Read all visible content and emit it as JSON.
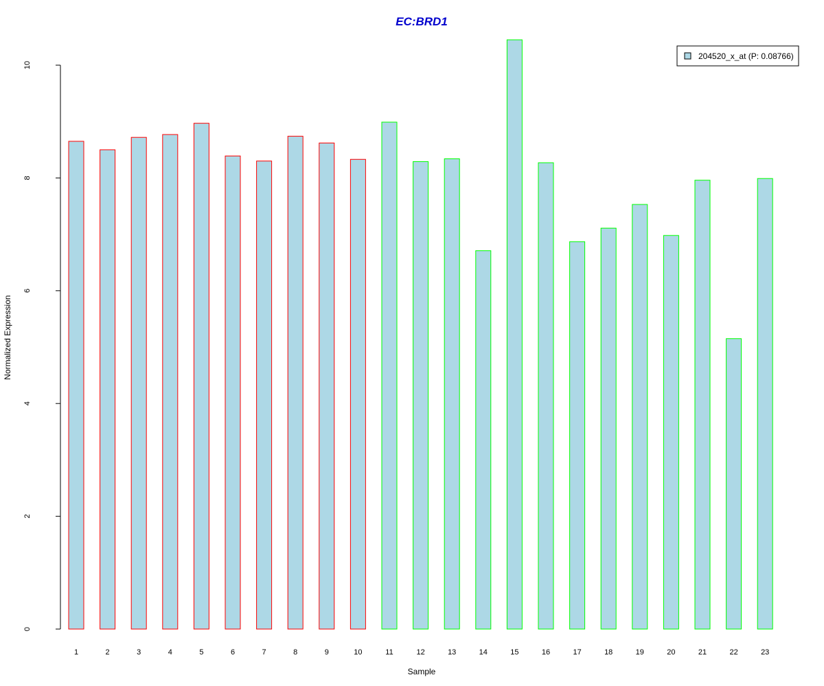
{
  "chart_data": {
    "type": "bar",
    "title": "EC:BRD1",
    "xlabel": "Sample",
    "ylabel": "Normalized Expression",
    "ylim": [
      0,
      10.45
    ],
    "yticks": [
      0,
      2,
      4,
      6,
      8,
      10
    ],
    "categories": [
      "1",
      "2",
      "3",
      "4",
      "5",
      "6",
      "7",
      "8",
      "9",
      "10",
      "11",
      "12",
      "13",
      "14",
      "15",
      "16",
      "17",
      "18",
      "19",
      "20",
      "21",
      "22",
      "23"
    ],
    "series": [
      {
        "name": "204520_x_at (P: 0.08766)",
        "values": [
          8.65,
          8.5,
          8.72,
          8.77,
          8.97,
          8.39,
          8.3,
          8.74,
          8.62,
          8.33,
          8.99,
          8.29,
          8.34,
          6.71,
          10.45,
          8.27,
          6.87,
          7.11,
          7.53,
          6.98,
          7.96,
          5.15,
          7.99
        ],
        "fill_color": "#add8e6",
        "border_colors": [
          "#ff0000",
          "#ff0000",
          "#ff0000",
          "#ff0000",
          "#ff0000",
          "#ff0000",
          "#ff0000",
          "#ff0000",
          "#ff0000",
          "#ff0000",
          "#00ff00",
          "#00ff00",
          "#00ff00",
          "#00ff00",
          "#00ff00",
          "#00ff00",
          "#00ff00",
          "#00ff00",
          "#00ff00",
          "#00ff00",
          "#00ff00",
          "#00ff00",
          "#00ff00"
        ]
      }
    ],
    "legend": {
      "position": "top-right",
      "label": "204520_x_at (P: 0.08766)"
    },
    "grid": false,
    "title_color": "#0000cd"
  }
}
